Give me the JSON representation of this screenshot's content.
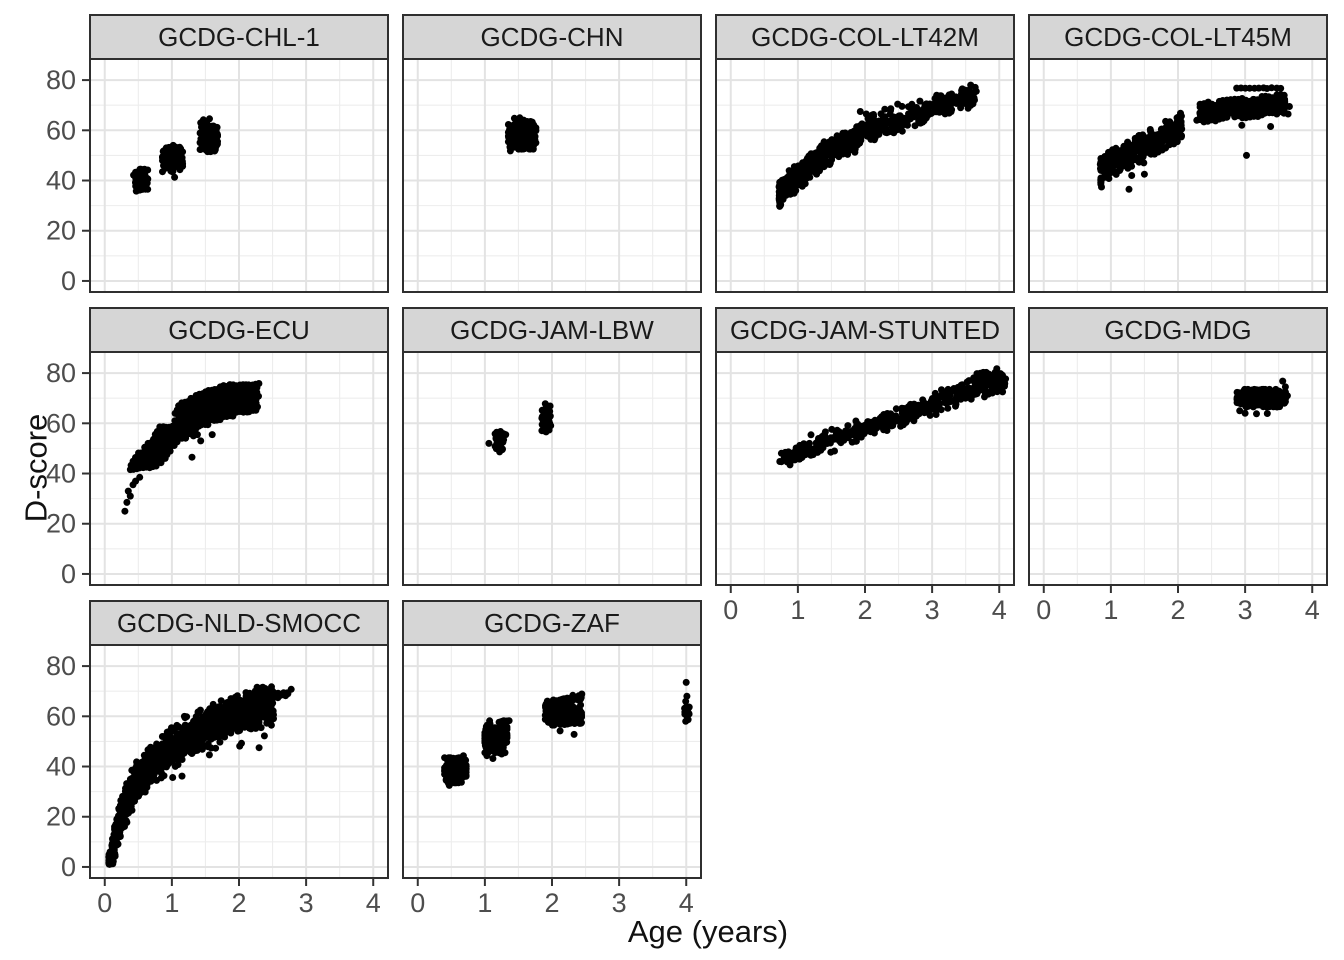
{
  "axes": {
    "x_label": "Age (years)",
    "y_label": "D-score",
    "x_ticks": [
      "0",
      "1",
      "2",
      "3",
      "4"
    ],
    "x_tick_values": [
      0,
      1,
      2,
      3,
      4
    ],
    "y_ticks": [
      "0",
      "20",
      "40",
      "60",
      "80"
    ],
    "y_tick_values": [
      0,
      20,
      40,
      60,
      80
    ],
    "x_range": [
      -0.22,
      4.22
    ],
    "y_range": [
      -4.4,
      88.4
    ],
    "x_minor": [
      0.5,
      1.5,
      2.5,
      3.5
    ],
    "y_minor": [
      10,
      30,
      50,
      70
    ]
  },
  "style": {
    "strip_fill": "#D6D6D6",
    "strip_border": "#2F2F2F",
    "strip_text_color": "#1A1A1A",
    "panel_fill": "#FFFFFF",
    "panel_border": "#2F2F2F",
    "grid_major_color": "#E3E3E3",
    "grid_minor_color": "#EDEDED",
    "tick_color": "#333333",
    "tick_label_color": "#4D4D4D",
    "point_color": "#000000",
    "point_radius": 3.5
  },
  "chart_data": {
    "type": "scatter",
    "title": "",
    "xlabel": "Age (years)",
    "ylabel": "D-score",
    "legend": "none",
    "grid": "major+minor",
    "facets": [
      {
        "label": "GCDG-CHL-1",
        "row": 0,
        "col": 0,
        "show_x_axis": false,
        "show_y_axis": true,
        "seed": 11,
        "clusters": [
          {
            "kind": "blob",
            "n": 75,
            "x": [
              0.43,
              0.64
            ],
            "y": [
              36.5,
              44.5
            ]
          },
          {
            "kind": "blob",
            "n": 165,
            "x": [
              0.86,
              1.16
            ],
            "y": [
              43.5,
              54.0
            ]
          },
          {
            "kind": "blob",
            "n": 165,
            "x": [
              1.42,
              1.68
            ],
            "y": [
              51.5,
              62.5
            ]
          },
          {
            "kind": "points",
            "pts": [
              [
                1.04,
                41.3
              ],
              [
                1.47,
                64.2
              ],
              [
                1.56,
                64.6
              ],
              [
                1.52,
                63.2
              ],
              [
                1.43,
                63.0
              ],
              [
                0.47,
                35.8
              ],
              [
                0.52,
                36.2
              ]
            ]
          }
        ]
      },
      {
        "label": "GCDG-CHN",
        "row": 0,
        "col": 1,
        "show_x_axis": false,
        "show_y_axis": false,
        "seed": 22,
        "clusters": [
          {
            "kind": "blob",
            "n": 280,
            "x": [
              1.35,
              1.76
            ],
            "y": [
              52.5,
              64.0
            ]
          },
          {
            "kind": "points",
            "pts": [
              [
                1.44,
                64.8
              ],
              [
                1.52,
                65.0
              ],
              [
                1.63,
                63.5
              ],
              [
                1.38,
                51.8
              ]
            ]
          }
        ]
      },
      {
        "label": "GCDG-COL-LT42M",
        "row": 0,
        "col": 2,
        "show_x_axis": false,
        "show_y_axis": false,
        "seed": 33,
        "clusters": [
          {
            "kind": "logband",
            "n": 780,
            "x": [
              0.72,
              3.66
            ],
            "y0": 34.0,
            "y1": 73.5,
            "sd": 2.3
          },
          {
            "kind": "points",
            "pts": [
              [
                1.93,
                67.5
              ],
              [
                2.02,
                66.5
              ],
              [
                0.74,
                33.0
              ],
              [
                0.78,
                32.5
              ],
              [
                3.45,
                76.5
              ],
              [
                3.55,
                76.0
              ]
            ]
          }
        ]
      },
      {
        "label": "GCDG-COL-LT45M",
        "row": 0,
        "col": 3,
        "show_x_axis": false,
        "show_y_axis": false,
        "seed": 44,
        "clusters": [
          {
            "kind": "columns",
            "x0": 0.85,
            "x1": 2.05,
            "step": 0.057,
            "per": 15,
            "c0": 44.5,
            "c1": 61.5,
            "half": 5.3
          },
          {
            "kind": "columns",
            "x0": 2.33,
            "x1": 3.58,
            "step": 0.057,
            "per": 13,
            "c0": 67.0,
            "c1": 70.5,
            "half": 3.9
          },
          {
            "kind": "run",
            "y": 76.8,
            "x0": 2.87,
            "x1": 3.53,
            "step": 0.066,
            "slope": 0,
            "jy": 0.25
          },
          {
            "kind": "points",
            "pts": [
              [
                0.85,
                40.0
              ],
              [
                0.85,
                38.6
              ],
              [
                0.86,
                37.4
              ],
              [
                1.06,
                43.5
              ],
              [
                1.13,
                44.0
              ],
              [
                1.31,
                42.0
              ],
              [
                1.49,
                47.0
              ],
              [
                1.5,
                42.5
              ],
              [
                2.28,
                64.0
              ],
              [
                2.95,
                62.0
              ],
              [
                3.38,
                61.5
              ],
              [
                3.02,
                50.0
              ],
              [
                3.64,
                66.5
              ],
              [
                3.66,
                69.5
              ],
              [
                1.27,
                36.5
              ]
            ]
          }
        ]
      },
      {
        "label": "GCDG-ECU",
        "row": 1,
        "col": 0,
        "show_x_axis": false,
        "show_y_axis": true,
        "seed": 55,
        "clusters": [
          {
            "kind": "run",
            "y": 74.8,
            "x0": 1.72,
            "x1": 2.32,
            "step": 0.048,
            "slope": 1.5,
            "jy": 0.5
          },
          {
            "kind": "run",
            "y": 73.0,
            "x0": 1.5,
            "x1": 2.28,
            "step": 0.048,
            "slope": 1.2,
            "jy": 0.5
          },
          {
            "kind": "run",
            "y": 71.3,
            "x0": 1.36,
            "x1": 2.3,
            "step": 0.048,
            "slope": 1.2,
            "jy": 0.5
          },
          {
            "kind": "run",
            "y": 69.8,
            "x0": 1.28,
            "x1": 2.3,
            "step": 0.048,
            "slope": 1.0,
            "jy": 0.5
          },
          {
            "kind": "run",
            "y": 68.3,
            "x0": 1.15,
            "x1": 2.3,
            "step": 0.048,
            "slope": 1.0,
            "jy": 0.5
          },
          {
            "kind": "run",
            "y": 66.8,
            "x0": 1.1,
            "x1": 2.26,
            "step": 0.048,
            "slope": 1.0,
            "jy": 0.5
          },
          {
            "kind": "run",
            "y": 65.3,
            "x0": 1.08,
            "x1": 2.3,
            "step": 0.048,
            "slope": 0.8,
            "jy": 0.5
          },
          {
            "kind": "run",
            "y": 63.8,
            "x0": 1.05,
            "x1": 2.26,
            "step": 0.048,
            "slope": 0.8,
            "jy": 0.5
          },
          {
            "kind": "run",
            "y": 62.3,
            "x0": 1.1,
            "x1": 1.92,
            "step": 0.048,
            "slope": 0.8,
            "jy": 0.5
          },
          {
            "kind": "run",
            "y": 60.8,
            "x0": 1.05,
            "x1": 1.76,
            "step": 0.048,
            "slope": 0.8,
            "jy": 0.5
          },
          {
            "kind": "run",
            "y": 58.4,
            "x0": 0.82,
            "x1": 1.56,
            "step": 0.048,
            "slope": 1.5,
            "jy": 0.5
          },
          {
            "kind": "run",
            "y": 56.8,
            "x0": 0.78,
            "x1": 1.36,
            "step": 0.048,
            "slope": 1.5,
            "jy": 0.5
          },
          {
            "kind": "run",
            "y": 55.2,
            "x0": 0.75,
            "x1": 1.3,
            "step": 0.048,
            "slope": 1.5,
            "jy": 0.5
          },
          {
            "kind": "run",
            "y": 53.6,
            "x0": 0.72,
            "x1": 1.2,
            "step": 0.048,
            "slope": 1.5,
            "jy": 0.5
          },
          {
            "kind": "run",
            "y": 52.0,
            "x0": 0.65,
            "x1": 1.1,
            "step": 0.048,
            "slope": 1.5,
            "jy": 0.5
          },
          {
            "kind": "run",
            "y": 50.4,
            "x0": 0.6,
            "x1": 1.05,
            "step": 0.048,
            "slope": 1.5,
            "jy": 0.5
          },
          {
            "kind": "run",
            "y": 48.2,
            "x0": 0.5,
            "x1": 1.02,
            "step": 0.048,
            "slope": 2.0,
            "jy": 0.5
          },
          {
            "kind": "run",
            "y": 46.6,
            "x0": 0.45,
            "x1": 0.95,
            "step": 0.048,
            "slope": 2.0,
            "jy": 0.5
          },
          {
            "kind": "run",
            "y": 45.0,
            "x0": 0.42,
            "x1": 0.9,
            "step": 0.048,
            "slope": 2.0,
            "jy": 0.5
          },
          {
            "kind": "run",
            "y": 43.4,
            "x0": 0.4,
            "x1": 0.85,
            "step": 0.048,
            "slope": 2.0,
            "jy": 0.5
          },
          {
            "kind": "run",
            "y": 41.8,
            "x0": 0.38,
            "x1": 0.8,
            "step": 0.048,
            "slope": 2.0,
            "jy": 0.5
          },
          {
            "kind": "points",
            "pts": [
              [
                0.3,
                25.0
              ],
              [
                0.33,
                28.5
              ],
              [
                0.38,
                31.0
              ],
              [
                0.35,
                33.0
              ],
              [
                0.42,
                35.5
              ],
              [
                0.46,
                37.0
              ],
              [
                0.52,
                38.5
              ],
              [
                1.15,
                62.0
              ],
              [
                1.22,
                63.5
              ],
              [
                1.32,
                55.0
              ],
              [
                1.38,
                55.5
              ],
              [
                1.18,
                55.0
              ],
              [
                0.95,
                57.0
              ],
              [
                1.3,
                46.5
              ],
              [
                1.43,
                53.0
              ],
              [
                1.6,
                55.5
              ],
              [
                2.12,
                64.5
              ]
            ]
          }
        ]
      },
      {
        "label": "GCDG-JAM-LBW",
        "row": 1,
        "col": 1,
        "show_x_axis": false,
        "show_y_axis": false,
        "seed": 66,
        "clusters": [
          {
            "kind": "blob",
            "n": 70,
            "x": [
              1.15,
              1.28
            ],
            "y": [
              49.5,
              57.5
            ]
          },
          {
            "kind": "blob",
            "n": 75,
            "x": [
              1.85,
              1.98
            ],
            "y": [
              56.5,
              67.0
            ]
          },
          {
            "kind": "points",
            "pts": [
              [
                1.06,
                52.0
              ],
              [
                1.31,
                55.5
              ],
              [
                1.22,
                48.6
              ],
              [
                1.9,
                67.8
              ]
            ]
          }
        ]
      },
      {
        "label": "GCDG-JAM-STUNTED",
        "row": 1,
        "col": 2,
        "show_x_axis": true,
        "show_y_axis": false,
        "seed": 77,
        "clusters": [
          {
            "kind": "linband",
            "n": 430,
            "x": [
              0.75,
              4.1
            ],
            "ys": 46.0,
            "ye": 78.0,
            "sd": 1.9
          },
          {
            "kind": "blob",
            "n": 70,
            "x": [
              3.55,
              4.12
            ],
            "y": [
              74.5,
              80.5
            ]
          },
          {
            "kind": "points",
            "pts": [
              [
                0.73,
                44.8
              ],
              [
                2.55,
                66.0
              ],
              [
                2.72,
                64.0
              ],
              [
                2.92,
                65.5
              ],
              [
                3.06,
                63.5
              ],
              [
                2.36,
                60.0
              ],
              [
                3.78,
                70.5
              ],
              [
                4.05,
                72.5
              ]
            ]
          }
        ]
      },
      {
        "label": "GCDG-MDG",
        "row": 1,
        "col": 3,
        "show_x_axis": true,
        "show_y_axis": false,
        "seed": 88,
        "clusters": [
          {
            "kind": "blob",
            "n": 270,
            "x": [
              2.88,
              3.6
            ],
            "y": [
              66.5,
              73.5
            ]
          },
          {
            "kind": "points",
            "pts": [
              [
                3.0,
                64.0
              ],
              [
                3.17,
                63.8
              ],
              [
                3.33,
                63.9
              ],
              [
                3.56,
                76.8
              ],
              [
                2.92,
                65.0
              ],
              [
                3.63,
                71.0
              ],
              [
                3.6,
                74.5
              ]
            ]
          }
        ]
      },
      {
        "label": "GCDG-NLD-SMOCC",
        "row": 2,
        "col": 0,
        "show_x_axis": true,
        "show_y_axis": true,
        "seed": 99,
        "clusters": [
          {
            "kind": "logcurve",
            "n": 1550,
            "xmin": 0.06,
            "xmax": 2.52,
            "a": 19.5,
            "b": 47.5,
            "sd": 3.4,
            "pow": 1.35,
            "ymin": 1.0,
            "dropp": 0.04,
            "dropmax": 12
          },
          {
            "kind": "streak",
            "n": 55,
            "x": [
              1.88,
              2.8
            ],
            "y0": 63.5,
            "slope": 7.0,
            "sd": 0.6
          },
          {
            "kind": "points",
            "pts": [
              [
                2.18,
                55.0
              ],
              [
                2.25,
                55.2
              ],
              [
                2.33,
                55.5
              ],
              [
                2.3,
                47.5
              ],
              [
                2.42,
                57.5
              ],
              [
                2.47,
                58.5
              ],
              [
                0.07,
                2.0
              ],
              [
                0.08,
                3.5
              ],
              [
                0.09,
                1.5
              ],
              [
                0.1,
                4.5
              ],
              [
                0.12,
                3.0
              ]
            ]
          }
        ]
      },
      {
        "label": "GCDG-ZAF",
        "row": 2,
        "col": 1,
        "show_x_axis": true,
        "show_y_axis": false,
        "seed": 110,
        "clusters": [
          {
            "kind": "blob",
            "n": 270,
            "x": [
              0.4,
              0.72
            ],
            "y": [
              33.5,
              43.5
            ]
          },
          {
            "kind": "blob",
            "n": 270,
            "x": [
              1.0,
              1.33
            ],
            "y": [
              45.5,
              57.0
            ]
          },
          {
            "kind": "run",
            "y": 57.8,
            "x0": 1.22,
            "x1": 1.36,
            "step": 0.02,
            "slope": 3,
            "jy": 0.3
          },
          {
            "kind": "blob",
            "n": 300,
            "x": [
              1.9,
              2.44
            ],
            "y": [
              56.5,
              64.5
            ]
          },
          {
            "kind": "streak",
            "n": 60,
            "x": [
              1.9,
              2.45
            ],
            "y0": 64.8,
            "slope": 5.5,
            "sd": 0.5
          },
          {
            "kind": "blob",
            "n": 26,
            "x": [
              3.97,
              4.05
            ],
            "y": [
              58.0,
              66.0
            ]
          },
          {
            "kind": "points",
            "pts": [
              [
                0.47,
                32.5
              ],
              [
                0.68,
                44.3
              ],
              [
                1.03,
                44.3
              ],
              [
                1.12,
                43.2
              ],
              [
                1.25,
                45.0
              ],
              [
                2.12,
                54.2
              ],
              [
                2.33,
                52.8
              ],
              [
                4.0,
                73.5
              ],
              [
                4.01,
                68.0
              ],
              [
                1.07,
                58.2
              ]
            ]
          }
        ]
      }
    ]
  }
}
